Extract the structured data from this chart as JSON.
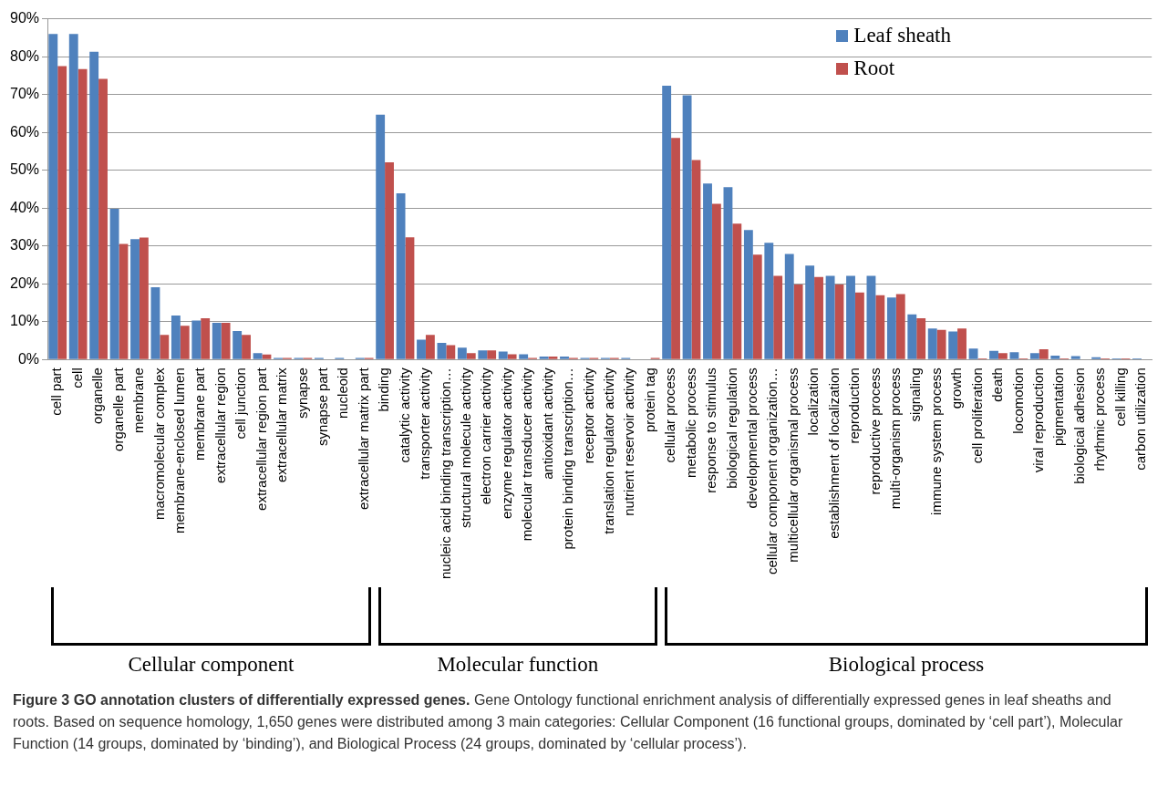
{
  "chart_data": {
    "type": "bar",
    "categories": [
      "cell part",
      "cell",
      "organelle",
      "organelle part",
      "membrane",
      "macromolecular complex",
      "membrane-enclosed lumen",
      "membrane part",
      "extracellular region",
      "cell junction",
      "extracellular region part",
      "extracellular matrix",
      "synapse",
      "synapse part",
      "nucleoid",
      "extracellular matrix part",
      "binding",
      "catalytic activity",
      "transporter activity",
      "nucleic acid binding transcription…",
      "structural molecule activity",
      "electron carrier activity",
      "enzyme regulator activity",
      "molecular transducer activity",
      "antioxidant activity",
      "protein binding transcription…",
      "receptor activity",
      "translation regulator activity",
      "nutrient reservoir activity",
      "protein tag",
      "cellular process",
      "metabolic process",
      "response to stimulus",
      "biological regulation",
      "developmental process",
      "cellular component organization…",
      "multicellular organismal process",
      "localization",
      "establishment of localization",
      "reproduction",
      "reproductive process",
      "multi-organism process",
      "signaling",
      "immune system process",
      "growth",
      "cell proliferation",
      "death",
      "locomotion",
      "viral reproduction",
      "pigmentation",
      "biological adhesion",
      "rhythmic process",
      "cell killing",
      "carbon utilization"
    ],
    "series": [
      {
        "name": "Leaf sheath",
        "color": "#4f81bd",
        "values": [
          86.0,
          86.0,
          81.3,
          39.8,
          31.8,
          19.1,
          11.6,
          10.3,
          9.7,
          7.5,
          1.7,
          0.4,
          0.4,
          0.4,
          0.4,
          0.4,
          64.7,
          43.9,
          5.2,
          4.4,
          3.1,
          2.4,
          2.1,
          1.4,
          0.8,
          0.8,
          0.4,
          0.4,
          0.4,
          0,
          72.3,
          69.8,
          46.5,
          45.5,
          34.2,
          30.8,
          27.9,
          24.8,
          22.1,
          22.1,
          22.1,
          16.4,
          11.9,
          8.2,
          7.4,
          2.9,
          2.3,
          1.9,
          1.7,
          1.0,
          0.9,
          0.6,
          0.3,
          0.3
        ]
      },
      {
        "name": "Root",
        "color": "#c0504d",
        "values": [
          77.5,
          76.7,
          74.1,
          30.5,
          32.2,
          6.5,
          8.9,
          10.9,
          9.7,
          6.5,
          1.3,
          0.4,
          0.4,
          0,
          0,
          0.4,
          52.1,
          32.3,
          6.5,
          3.8,
          1.7,
          2.4,
          1.4,
          0.4,
          0.8,
          0.4,
          0.4,
          0.4,
          0,
          0.4,
          58.5,
          52.7,
          41.1,
          35.9,
          27.7,
          22.1,
          19.8,
          21.8,
          19.8,
          17.7,
          17.0,
          17.3,
          10.9,
          7.8,
          8.2,
          0.3,
          1.7,
          0.3,
          2.7,
          0.3,
          0,
          0.3,
          0.3,
          0
        ]
      }
    ],
    "ylim": [
      0,
      90
    ],
    "yticks": [
      {
        "value": 0,
        "label": "0%"
      },
      {
        "value": 10,
        "label": "10%"
      },
      {
        "value": 20,
        "label": "20%"
      },
      {
        "value": 30,
        "label": "30%"
      },
      {
        "value": 40,
        "label": "40%"
      },
      {
        "value": 50,
        "label": "50%"
      },
      {
        "value": 60,
        "label": "60%"
      },
      {
        "value": 70,
        "label": "70%"
      },
      {
        "value": 80,
        "label": "80%"
      },
      {
        "value": 90,
        "label": "90%"
      }
    ],
    "grid": "y",
    "legend": "top right",
    "annotations": [
      "Cellular component",
      "Molecular function",
      "Biological process",
      "Figure 3 GO annotation clusters of differentially expressed genes.",
      "Gene Ontology functional enrichment analysis of differentially expressed genes in leaf sheaths and roots. Based on sequence homology, 1,650 genes were distributed among 3 main categories: Cellular Component (16 functional groups, dominated by ‘cell part’), Molecular Function (14 groups, dominated by ‘binding’), and Biological Process (24 groups, dominated by ‘cellular process’)."
    ]
  }
}
